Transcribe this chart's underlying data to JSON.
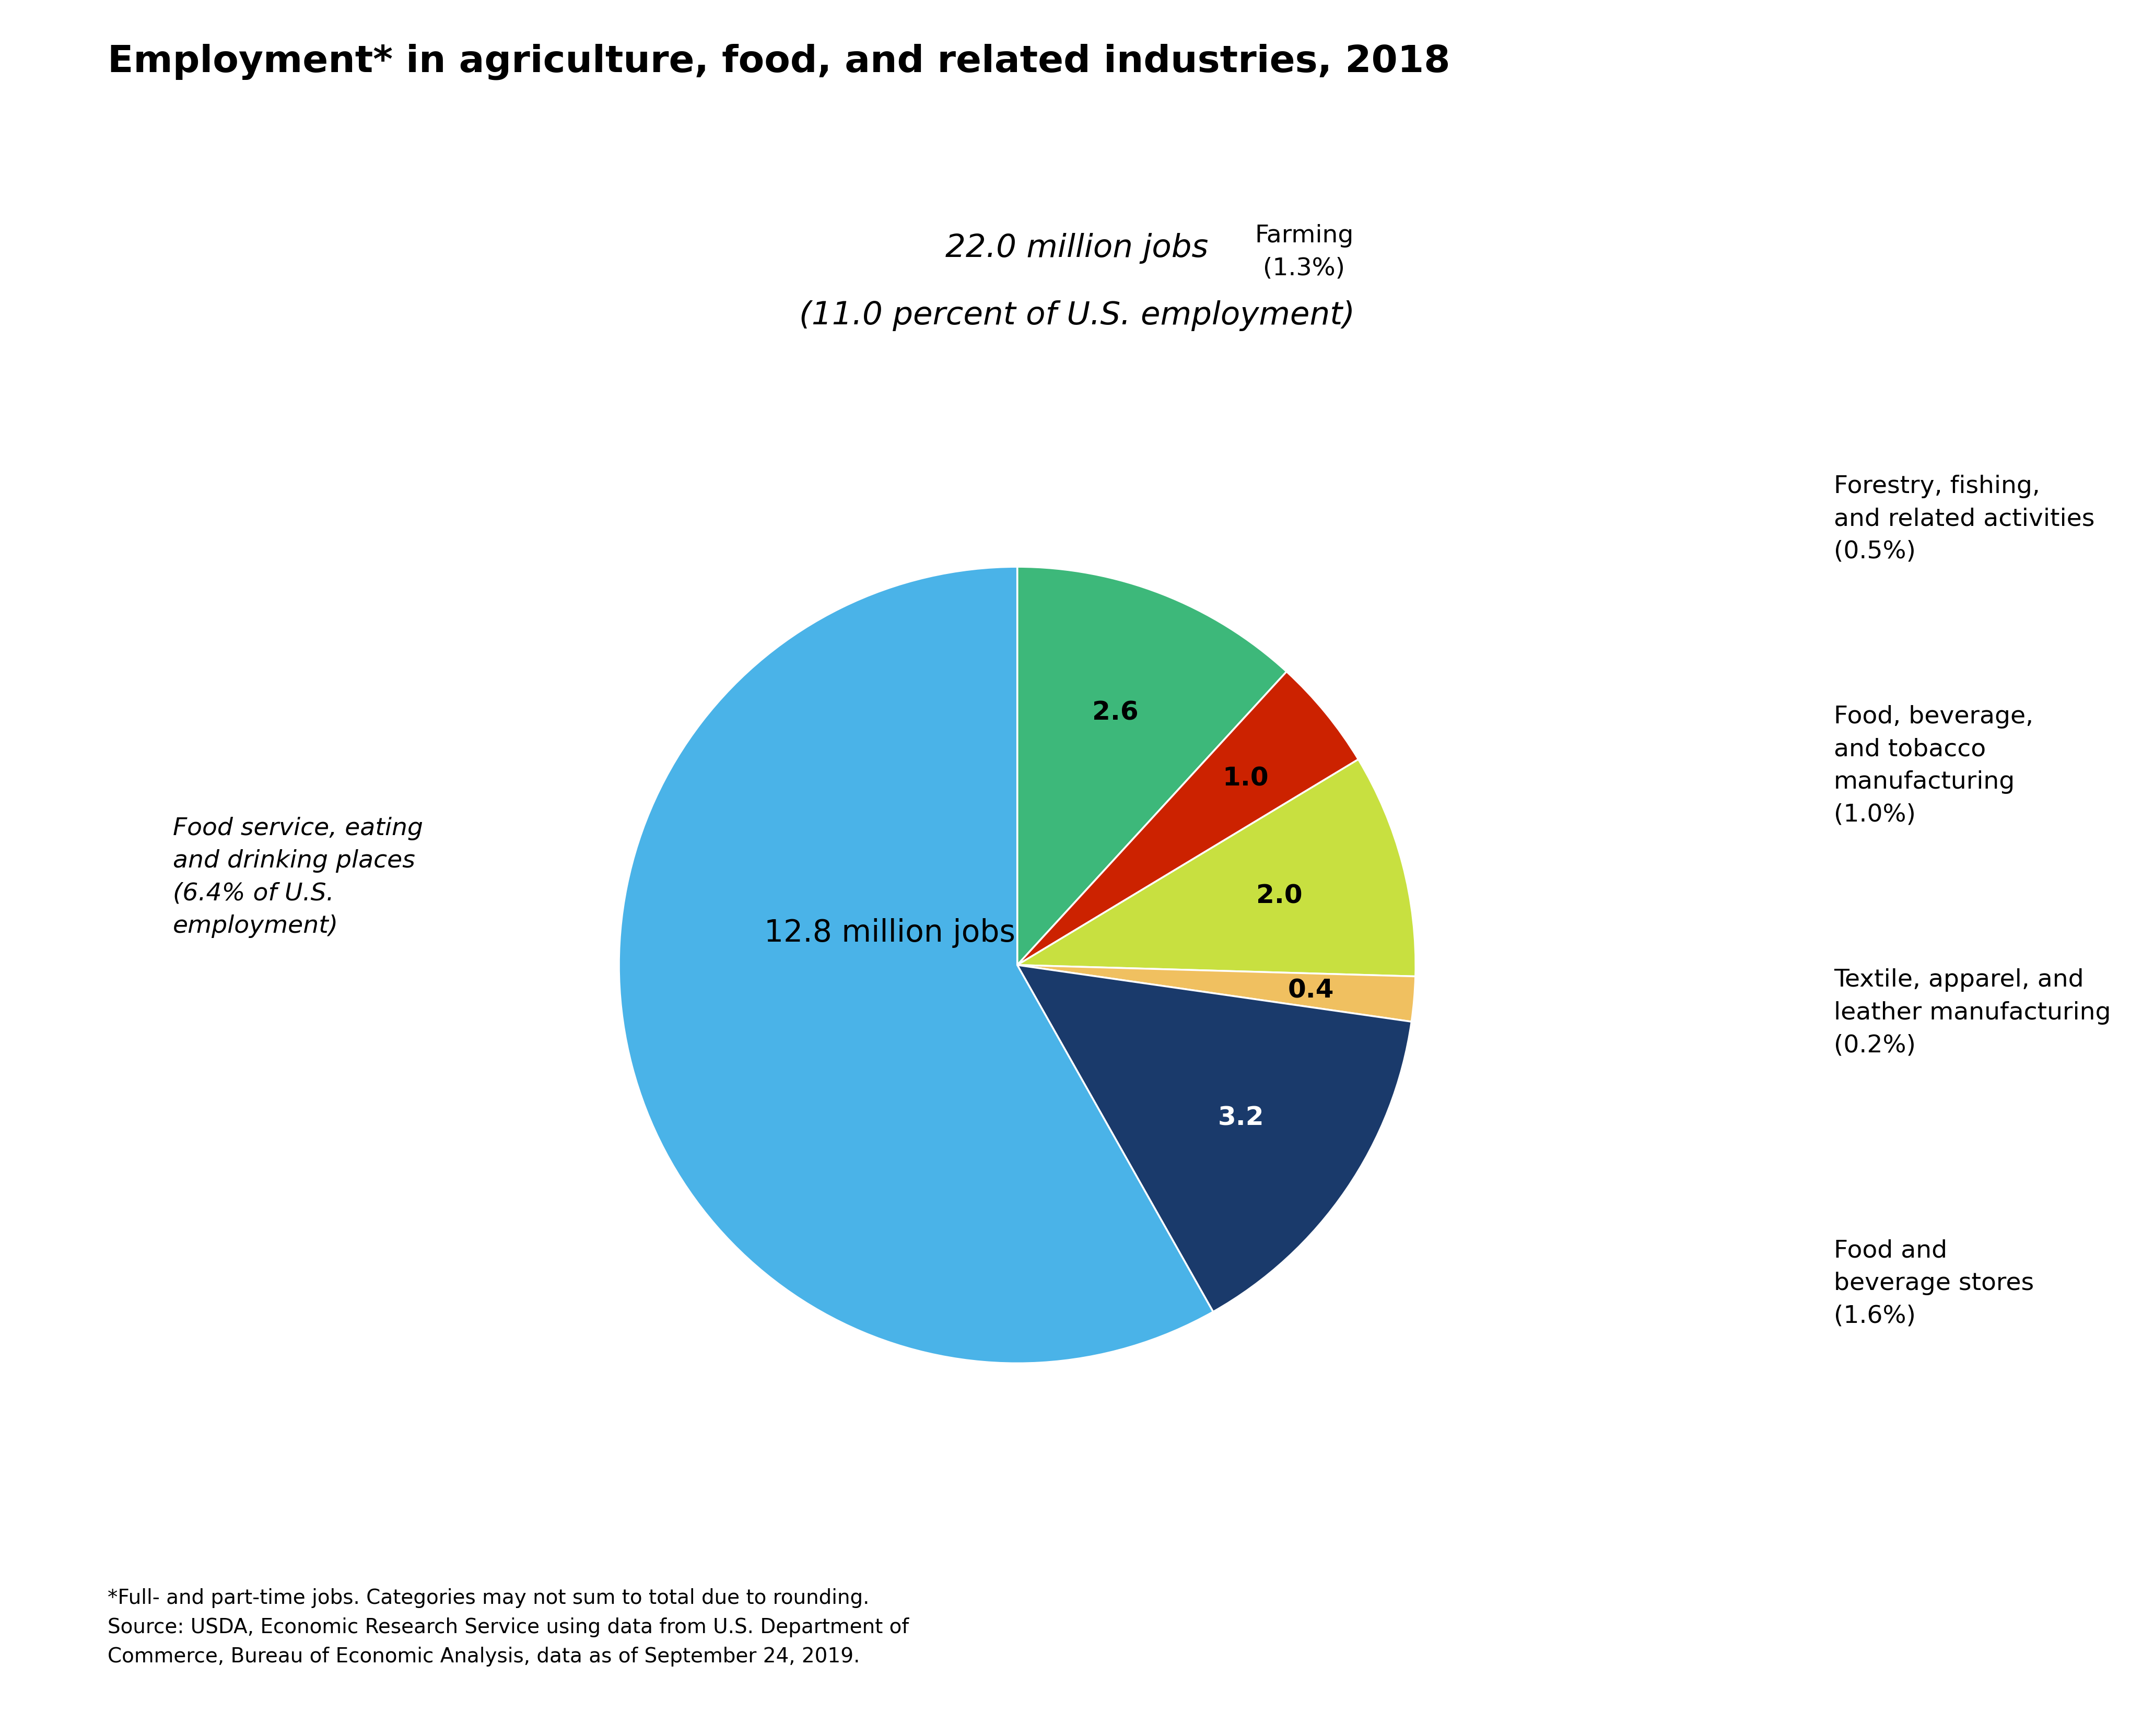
{
  "title": "Employment* in agriculture, food, and related industries, 2018",
  "subtitle_line1": "22.0 million jobs",
  "subtitle_line2": "(11.0 percent of U.S. employment)",
  "slices": [
    {
      "label": "Farming\n(1.3%)",
      "value": 2.6,
      "color": "#3db87a",
      "inner_label": "2.6",
      "inner_color": "black"
    },
    {
      "label": "Forestry, fishing,\nand related activities\n(0.5%)",
      "value": 1.0,
      "color": "#cc2200",
      "inner_label": "1.0",
      "inner_color": "black"
    },
    {
      "label": "Food, beverage,\nand tobacco\nmanufacturing\n(1.0%)",
      "value": 2.0,
      "color": "#c8e040",
      "inner_label": "2.0",
      "inner_color": "black"
    },
    {
      "label": "Textile, apparel, and\nleather manufacturing\n(0.2%)",
      "value": 0.4,
      "color": "#f0c060",
      "inner_label": "0.4",
      "inner_color": "black"
    },
    {
      "label": "Food and\nbeverage stores\n(1.6%)",
      "value": 3.2,
      "color": "#1a3a6b",
      "inner_label": "3.2",
      "inner_color": "white"
    },
    {
      "label": "Food service, eating\nand drinking places\n(6.4% of U.S.\nemployment)",
      "value": 12.8,
      "color": "#4ab3e8",
      "inner_label": "12.8 million jobs",
      "inner_color": "black"
    }
  ],
  "footnote": "*Full- and part-time jobs. Categories may not sum to total due to rounding.\nSource: USDA, Economic Research Service using data from U.S. Department of\nCommerce, Bureau of Economic Analysis, data as of September 24, 2019.",
  "background_color": "#ffffff",
  "title_fontsize": 52,
  "subtitle_fontsize": 44,
  "label_fontsize": 34,
  "inner_label_fontsize": 36,
  "footnote_fontsize": 28
}
